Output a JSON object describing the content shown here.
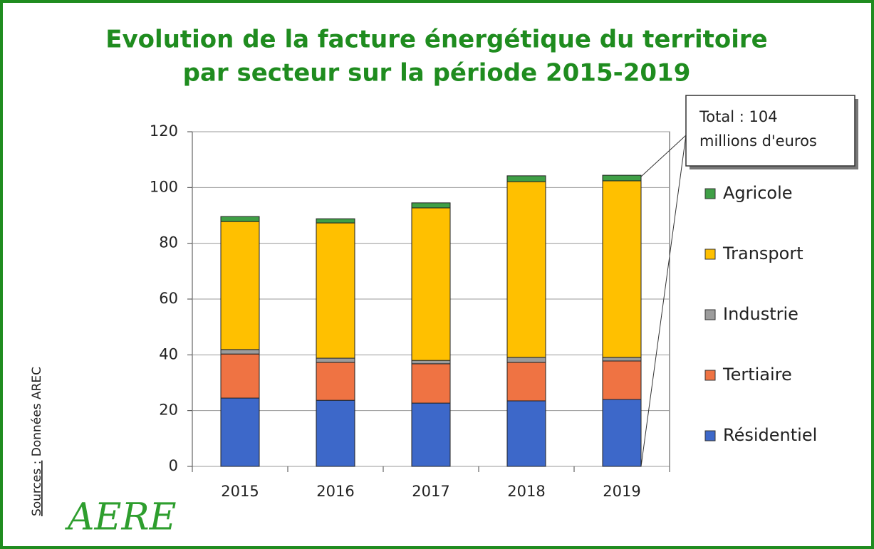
{
  "chart_data": {
    "type": "stacked_bar",
    "title": [
      "Evolution de la facture énergétique du territoire",
      "par secteur sur la période 2015-2019"
    ],
    "categories": [
      "2015",
      "2016",
      "2017",
      "2018",
      "2019"
    ],
    "series": [
      {
        "name": "Résidentiel",
        "color": "#3d68c9",
        "values": [
          24.5,
          23.7,
          22.7,
          23.5,
          24.0
        ]
      },
      {
        "name": "Tertiaire",
        "color": "#ef7343",
        "values": [
          15.8,
          13.6,
          14.1,
          13.8,
          13.8
        ]
      },
      {
        "name": "Industrie",
        "color": "#9c9c9c",
        "values": [
          1.6,
          1.5,
          1.2,
          1.8,
          1.3
        ]
      },
      {
        "name": "Transport",
        "color": "#ffc000",
        "values": [
          45.9,
          48.5,
          54.7,
          63.0,
          63.3
        ]
      },
      {
        "name": "Agricole",
        "color": "#3f9f46",
        "values": [
          1.8,
          1.5,
          1.8,
          2.1,
          2.0
        ]
      }
    ],
    "ylim": [
      0,
      120
    ],
    "yticks": [
      0,
      20,
      40,
      60,
      80,
      100,
      120
    ],
    "grid": true,
    "legend": "right",
    "annotation": [
      "Total : 104",
      "millions d'euros"
    ],
    "source_label": "Sources :",
    "source_text": "Données AREC",
    "logo": "AERE"
  }
}
